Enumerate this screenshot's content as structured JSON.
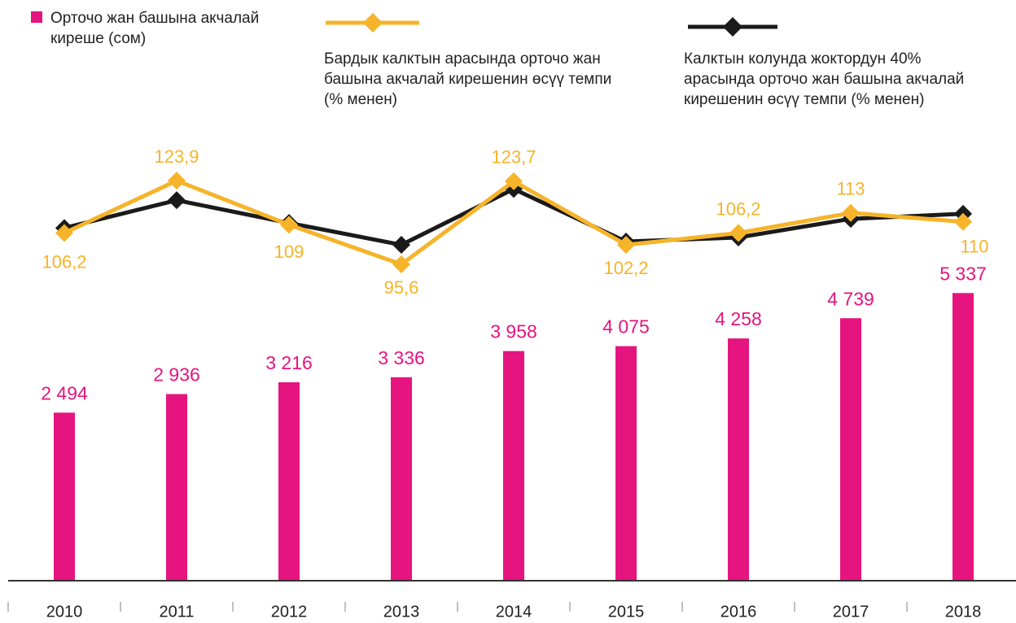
{
  "chart_data": {
    "type": "bar_line",
    "categories": [
      "2010",
      "2011",
      "2012",
      "2013",
      "2014",
      "2015",
      "2016",
      "2017",
      "2018"
    ],
    "ylim": [
      -1500,
      6000
    ],
    "y2lim": [
      90,
      130
    ],
    "series": [
      {
        "name": "Орточо жан башына акчалай\nкиреше (сом)",
        "type": "bar",
        "color": "#e5147f",
        "values": [
          2494,
          2936,
          3216,
          3336,
          3958,
          4075,
          4258,
          4739,
          5337
        ],
        "value_labels": [
          "2 494",
          "2 936",
          "3 216",
          "3 336",
          "3 958",
          "4 075",
          "4 258",
          "4 739",
          "5 337"
        ]
      },
      {
        "name": "Бардык калктын арасында орточо жан\nбашына акчалай кирешенин өсүү темпи\n(% менен)",
        "type": "line",
        "axis": "y2",
        "color": "#f5b42a",
        "values": [
          106.2,
          123.9,
          109,
          95.6,
          123.7,
          102.2,
          106.2,
          113,
          110
        ],
        "value_labels": [
          "106,2",
          "123,9",
          "109",
          "95,6",
          "123,7",
          "102,2",
          "106,2",
          "113",
          "110"
        ]
      },
      {
        "name": "Калктын колунда жоктордун 40%\nарасында орточо жан башына акчалай\nкирешенин өсүү темпи (% менен)",
        "type": "line",
        "axis": "y2",
        "color": "#1a1a1a",
        "values": [
          107.9,
          117.3,
          109.6,
          102.2,
          121.1,
          103.3,
          104.7,
          111.0,
          112.7
        ]
      }
    ]
  }
}
